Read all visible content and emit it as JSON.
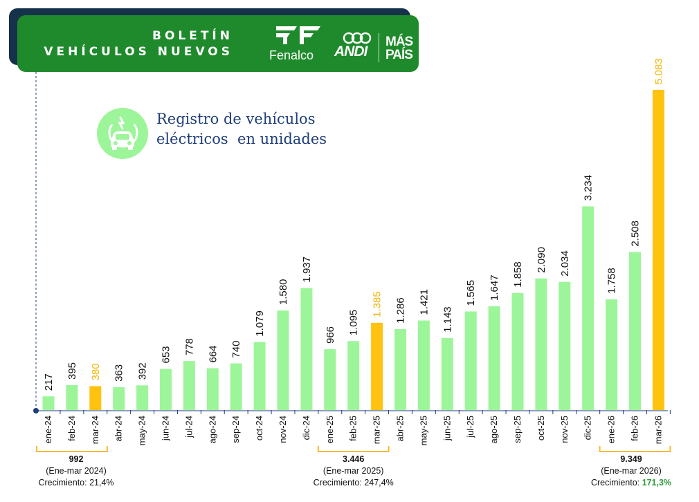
{
  "header": {
    "title_line1": "BOLETÍN",
    "title_line2": "VEHÍCULOS NUEVOS",
    "logos": {
      "fenalco": "Fenalco",
      "andi": "ANDI",
      "maspais_line1": "MÁS",
      "maspais_line2": "PAÍS"
    }
  },
  "icon": "electric-car-icon",
  "colors": {
    "header_green": "#1f8a2c",
    "bar_green": "#9df59a",
    "bar_highlight": "#ffc20e",
    "bracket": "#f6b93b",
    "growth_highlight": "#2e9a3c"
  },
  "chart_data": {
    "type": "bar",
    "title": "Registro de vehículos\neléctricos  en unidades",
    "categories": [
      "ene-24",
      "feb-24",
      "mar-24",
      "abr-24",
      "may-24",
      "jun-24",
      "jul-24",
      "ago-24",
      "sep-24",
      "oct-24",
      "nov-24",
      "dic-24",
      "ene-25",
      "feb-25",
      "mar-25",
      "abr-25",
      "may-25",
      "jun-25",
      "jul-25",
      "ago-25",
      "sep-25",
      "oct-25",
      "nov-25",
      "dic-25",
      "ene-26",
      "feb-26",
      "mar-26"
    ],
    "values": [
      217,
      395,
      380,
      363,
      392,
      653,
      778,
      664,
      740,
      1079,
      1580,
      1937,
      966,
      1095,
      1385,
      1286,
      1421,
      1143,
      1565,
      1647,
      1858,
      2090,
      2034,
      3234,
      1758,
      2508,
      5083
    ],
    "value_labels": [
      "217",
      "395",
      "380",
      "363",
      "392",
      "653",
      "778",
      "664",
      "740",
      "1.079",
      "1.580",
      "1.937",
      "966",
      "1.095",
      "1.385",
      "1.286",
      "1.421",
      "1.143",
      "1.565",
      "1.647",
      "1.858",
      "2.090",
      "2.034",
      "3.234",
      "1.758",
      "2.508",
      "5.083"
    ],
    "highlighted": [
      "mar-24",
      "mar-25",
      "mar-26"
    ],
    "ylim": [
      0,
      5083
    ],
    "annotations": [
      {
        "total": "992",
        "period": "(Ene-mar 2024)",
        "growth_label": "Crecimiento:",
        "growth_value": "21,4%",
        "green": false
      },
      {
        "total": "3.446",
        "period": "(Ene-mar 2025)",
        "growth_label": "Crecimiento:",
        "growth_value": "247,4%",
        "green": false
      },
      {
        "total": "9.349",
        "period": "(Ene-mar 2026)",
        "growth_label": "Crecimiento:",
        "growth_value": "171,3%",
        "green": true
      }
    ]
  }
}
